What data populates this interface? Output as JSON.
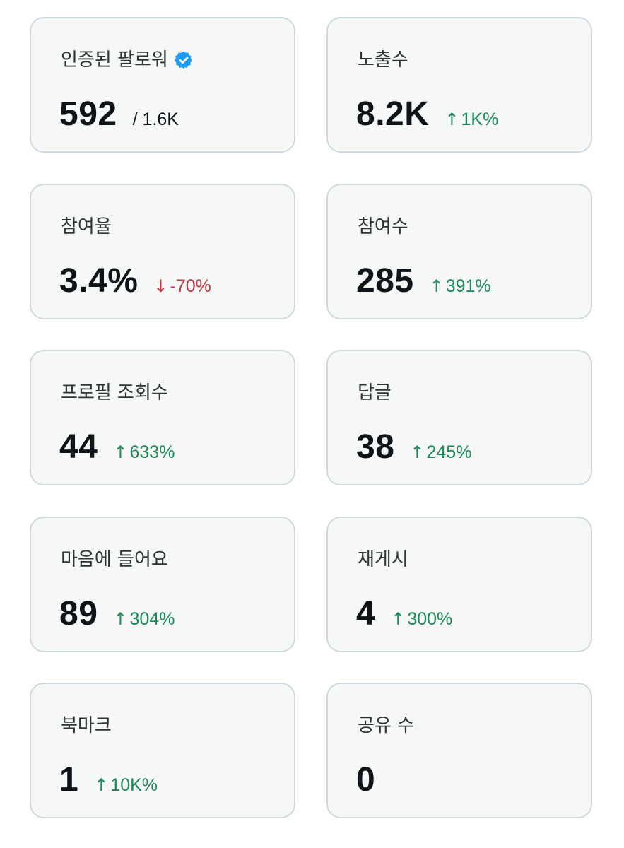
{
  "colors": {
    "card_bg": "#f6f7f7",
    "card_border": "#cfd9de",
    "text_primary": "#0f1419",
    "label_text": "#2f3336",
    "positive": "#1a8a5a",
    "negative": "#c9353f",
    "verified": "#1d9bf0"
  },
  "cards": [
    {
      "label": "인증된 팔로워",
      "icon": "verified-badge-icon",
      "value": "592",
      "sub": "/ 1.6K"
    },
    {
      "label": "노출수",
      "value": "8.2K",
      "delta_arrow": "↑",
      "delta": "1K%",
      "trend": "up"
    },
    {
      "label": "참여율",
      "value": "3.4%",
      "delta_arrow": "↓",
      "delta": "-70%",
      "trend": "down"
    },
    {
      "label": "참여수",
      "value": "285",
      "delta_arrow": "↑",
      "delta": "391%",
      "trend": "up"
    },
    {
      "label": "프로필 조회수",
      "value": "44",
      "delta_arrow": "↑",
      "delta": "633%",
      "trend": "up"
    },
    {
      "label": "답글",
      "value": "38",
      "delta_arrow": "↑",
      "delta": "245%",
      "trend": "up"
    },
    {
      "label": "마음에 들어요",
      "value": "89",
      "delta_arrow": "↑",
      "delta": "304%",
      "trend": "up"
    },
    {
      "label": "재게시",
      "value": "4",
      "delta_arrow": "↑",
      "delta": "300%",
      "trend": "up"
    },
    {
      "label": "북마크",
      "value": "1",
      "delta_arrow": "↑",
      "delta": "10K%",
      "trend": "up"
    },
    {
      "label": "공유 수",
      "value": "0"
    }
  ]
}
